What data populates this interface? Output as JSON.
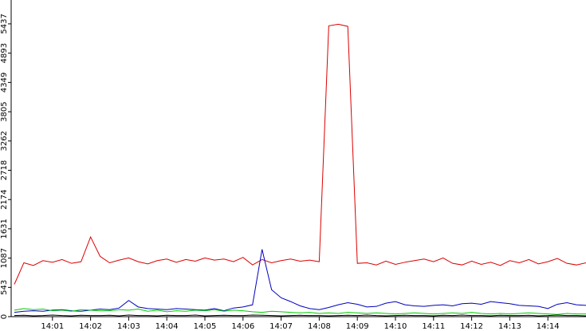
{
  "chart_data": {
    "type": "line",
    "x": [
      "14:00:00",
      "14:00:15",
      "14:00:30",
      "14:00:45",
      "14:01:00",
      "14:01:15",
      "14:01:30",
      "14:01:45",
      "14:02:00",
      "14:02:15",
      "14:02:30",
      "14:02:45",
      "14:03:00",
      "14:03:15",
      "14:03:30",
      "14:03:45",
      "14:04:00",
      "14:04:15",
      "14:04:30",
      "14:04:45",
      "14:05:00",
      "14:05:15",
      "14:05:30",
      "14:05:45",
      "14:06:00",
      "14:06:15",
      "14:06:30",
      "14:06:45",
      "14:07:00",
      "14:07:15",
      "14:07:30",
      "14:07:45",
      "14:08:00",
      "14:08:15",
      "14:08:30",
      "14:08:45",
      "14:09:00",
      "14:09:15",
      "14:09:30",
      "14:09:45",
      "14:10:00",
      "14:10:15",
      "14:10:30",
      "14:10:45",
      "14:11:00",
      "14:11:15",
      "14:11:30",
      "14:11:45",
      "14:12:00",
      "14:12:15",
      "14:12:30",
      "14:12:45",
      "14:13:00",
      "14:13:15",
      "14:13:30",
      "14:13:45",
      "14:14:00",
      "14:14:15",
      "14:14:30",
      "14:14:45",
      "14:15:00"
    ],
    "series": [
      {
        "color": "#dd0000",
        "values": [
          600,
          1000,
          950,
          1040,
          1010,
          1060,
          990,
          1020,
          1480,
          1120,
          1000,
          1050,
          1090,
          1020,
          980,
          1040,
          1070,
          1010,
          1060,
          1030,
          1090,
          1050,
          1070,
          1020,
          1100,
          960,
          1060,
          1000,
          1040,
          1070,
          1030,
          1050,
          1020,
          5400,
          5430,
          5390,
          990,
          1000,
          960,
          1030,
          970,
          1010,
          1040,
          1070,
          1020,
          1090,
          990,
          960,
          1030,
          970,
          1010,
          950,
          1040,
          1000,
          1060,
          980,
          1020,
          1080,
          990,
          960,
          1000
        ]
      },
      {
        "color": "#0000c0",
        "values": [
          80,
          100,
          110,
          100,
          120,
          130,
          110,
          100,
          120,
          140,
          130,
          160,
          300,
          180,
          150,
          140,
          130,
          150,
          140,
          130,
          120,
          150,
          110,
          160,
          180,
          220,
          1250,
          500,
          350,
          280,
          200,
          150,
          130,
          170,
          220,
          260,
          230,
          180,
          190,
          250,
          280,
          220,
          200,
          190,
          210,
          220,
          200,
          240,
          250,
          230,
          280,
          260,
          240,
          210,
          200,
          190,
          150,
          230,
          260,
          220,
          210
        ]
      },
      {
        "color": "#00cc00",
        "values": [
          120,
          150,
          130,
          140,
          110,
          120,
          100,
          130,
          120,
          110,
          110,
          130,
          120,
          140,
          100,
          120,
          90,
          110,
          100,
          120,
          110,
          130,
          100,
          120,
          110,
          90,
          80,
          100,
          90,
          80,
          70,
          80,
          60,
          70,
          60,
          80,
          70,
          60,
          70,
          60,
          50,
          60,
          70,
          60,
          50,
          60,
          70,
          60,
          80,
          60,
          50,
          60,
          50,
          60,
          70,
          60,
          50,
          40,
          60,
          50,
          50
        ]
      },
      {
        "color": "#000000",
        "values": [
          20,
          25,
          15,
          20,
          30,
          20,
          15,
          25,
          20,
          20,
          25,
          15,
          30,
          20,
          20,
          15,
          25,
          20,
          20,
          30,
          15,
          20,
          25,
          20,
          20,
          30,
          25,
          20,
          15,
          20,
          25,
          20,
          20,
          15,
          20,
          25,
          20,
          30,
          20,
          15,
          20,
          25,
          20,
          20,
          15,
          25,
          20,
          30,
          20,
          20,
          15,
          25,
          20,
          20,
          25,
          15,
          20,
          30,
          20,
          20,
          15
        ]
      }
    ],
    "xlim": [
      "14:00",
      "14:15"
    ],
    "xticks": [
      "14:01",
      "14:02",
      "14:03",
      "14:04",
      "14:05",
      "14:06",
      "14:07",
      "14:08",
      "14:09",
      "14:10",
      "14:11",
      "14:12",
      "14:13",
      "14:14"
    ],
    "ylim": [
      0,
      5880
    ],
    "yticks": [
      0,
      543,
      1087,
      1631,
      2174,
      2718,
      3262,
      3805,
      4349,
      4893,
      5437
    ]
  }
}
